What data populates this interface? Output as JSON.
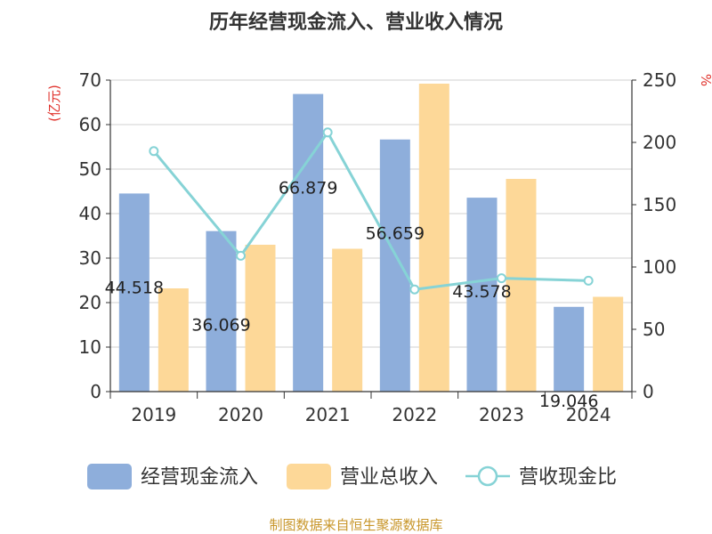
{
  "chart_data": {
    "type": "bar",
    "title": "历年经营现金流入、营业收入情况",
    "categories": [
      "2019",
      "2020",
      "2021",
      "2022",
      "2023",
      "2024"
    ],
    "series": [
      {
        "name": "经营现金流入",
        "type": "bar",
        "axis": "left",
        "color": "#8eaedb",
        "values": [
          44.518,
          36.069,
          66.879,
          56.659,
          43.578,
          19.046
        ],
        "labels": [
          "44.518",
          "36.069",
          "66.879",
          "56.659",
          "43.578",
          "19.046"
        ]
      },
      {
        "name": "营业总收入",
        "type": "bar",
        "axis": "left",
        "color": "#fdd898",
        "values": [
          23.2,
          33.0,
          32.1,
          69.2,
          47.8,
          21.3
        ]
      },
      {
        "name": "营收现金比",
        "type": "line",
        "axis": "right",
        "color": "#86d3d6",
        "values": [
          193,
          109,
          208,
          82,
          91,
          89
        ]
      }
    ],
    "left_axis": {
      "unit": "(亿元)",
      "ylim": [
        0,
        70
      ],
      "ticks": [
        "0",
        "10",
        "20",
        "30",
        "40",
        "50",
        "60",
        "70"
      ]
    },
    "right_axis": {
      "unit": "%",
      "ylim": [
        0,
        250
      ],
      "ticks": [
        "0",
        "50",
        "100",
        "150",
        "200",
        "250"
      ]
    },
    "grid": true,
    "legend_position": "bottom"
  },
  "source": "制图数据来自恒生聚源数据库"
}
